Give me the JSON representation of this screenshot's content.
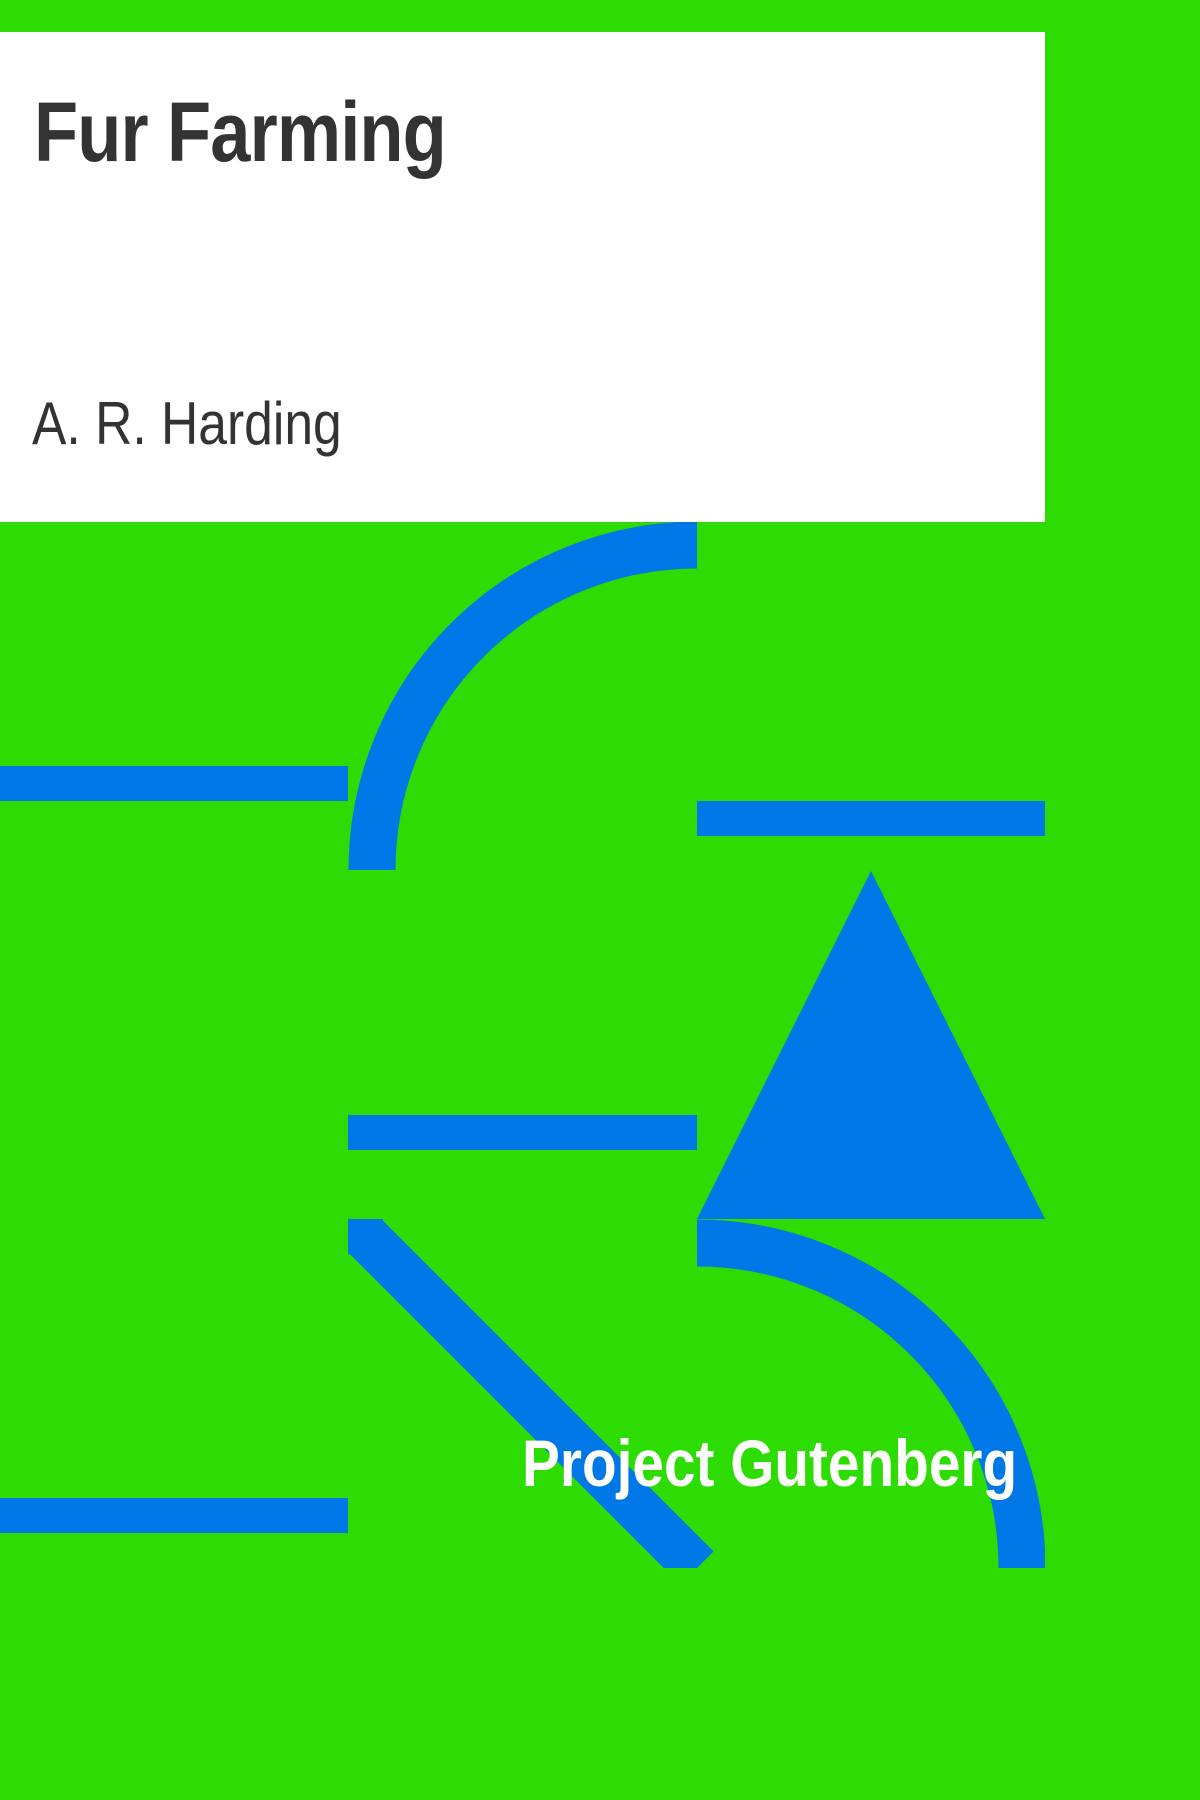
{
  "book": {
    "title": "Fur Farming",
    "author": "A. R. Harding",
    "publisher": "Project Gutenberg"
  },
  "colors": {
    "background": "#2ddc02",
    "panel": "#ffffff",
    "text": "#333333",
    "shapes": "#0077e6",
    "publisher_text": "#ffffff"
  },
  "icons": {
    "pattern": "geometric-cover-pattern"
  }
}
